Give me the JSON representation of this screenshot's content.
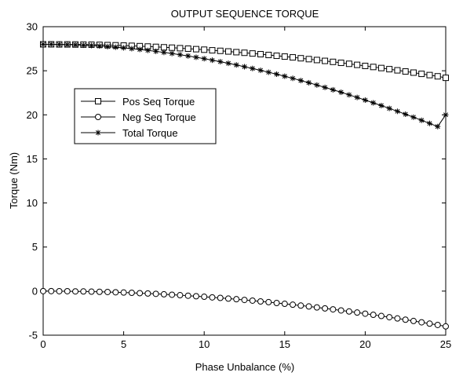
{
  "chart_data": {
    "type": "line",
    "title": "OUTPUT SEQUENCE TORQUE",
    "xlabel": "Phase Unbalance (%)",
    "ylabel": "Torque (Nm)",
    "xlim": [
      0,
      25
    ],
    "ylim": [
      -5,
      30
    ],
    "xticks": [
      0,
      5,
      10,
      15,
      20,
      25
    ],
    "yticks": [
      -5,
      0,
      5,
      10,
      15,
      20,
      25,
      30
    ],
    "grid": false,
    "legend_position": "upper-left",
    "series": [
      {
        "name": "Pos Seq Torque",
        "marker": "square",
        "x": [
          0,
          0.5,
          1,
          1.5,
          2,
          2.5,
          3,
          3.5,
          4,
          4.5,
          5,
          5.5,
          6,
          6.5,
          7,
          7.5,
          8,
          8.5,
          9,
          9.5,
          10,
          10.5,
          11,
          11.5,
          12,
          12.5,
          13,
          13.5,
          14,
          14.5,
          15,
          15.5,
          16,
          16.5,
          17,
          17.5,
          18,
          18.5,
          19,
          19.5,
          20,
          20.5,
          21,
          21.5,
          22,
          22.5,
          23,
          23.5,
          24,
          24.5,
          25
        ],
        "values": [
          28.0,
          28.0,
          27.99,
          27.99,
          27.98,
          27.97,
          27.96,
          27.94,
          27.91,
          27.89,
          27.86,
          27.83,
          27.79,
          27.75,
          27.71,
          27.66,
          27.62,
          27.56,
          27.51,
          27.45,
          27.39,
          27.32,
          27.26,
          27.19,
          27.11,
          27.04,
          26.96,
          26.88,
          26.79,
          26.7,
          26.61,
          26.52,
          26.42,
          26.32,
          26.22,
          26.12,
          26.01,
          25.9,
          25.79,
          25.67,
          25.55,
          25.43,
          25.31,
          25.18,
          25.05,
          24.92,
          24.79,
          24.65,
          24.51,
          24.37,
          24.2
        ]
      },
      {
        "name": "Neg Seq Torque",
        "marker": "circle",
        "x": [
          0,
          0.5,
          1,
          1.5,
          2,
          2.5,
          3,
          3.5,
          4,
          4.5,
          5,
          5.5,
          6,
          6.5,
          7,
          7.5,
          8,
          8.5,
          9,
          9.5,
          10,
          10.5,
          11,
          11.5,
          12,
          12.5,
          13,
          13.5,
          14,
          14.5,
          15,
          15.5,
          16,
          16.5,
          17,
          17.5,
          18,
          18.5,
          19,
          19.5,
          20,
          20.5,
          21,
          21.5,
          22,
          22.5,
          23,
          23.5,
          24,
          24.5,
          25
        ],
        "values": [
          0.0,
          0.0,
          -0.01,
          -0.01,
          -0.03,
          -0.04,
          -0.06,
          -0.08,
          -0.1,
          -0.13,
          -0.16,
          -0.19,
          -0.23,
          -0.27,
          -0.31,
          -0.36,
          -0.41,
          -0.46,
          -0.52,
          -0.58,
          -0.64,
          -0.71,
          -0.77,
          -0.85,
          -0.92,
          -1.0,
          -1.08,
          -1.17,
          -1.25,
          -1.35,
          -1.44,
          -1.54,
          -1.64,
          -1.74,
          -1.85,
          -1.96,
          -2.07,
          -2.19,
          -2.31,
          -2.43,
          -2.56,
          -2.69,
          -2.82,
          -2.96,
          -3.1,
          -3.24,
          -3.39,
          -3.54,
          -3.69,
          -3.84,
          -4.0
        ]
      },
      {
        "name": "Total Torque",
        "marker": "asterisk",
        "x": [
          0,
          0.5,
          1,
          1.5,
          2,
          2.5,
          3,
          3.5,
          4,
          4.5,
          5,
          5.5,
          6,
          6.5,
          7,
          7.5,
          8,
          8.5,
          9,
          9.5,
          10,
          10.5,
          11,
          11.5,
          12,
          12.5,
          13,
          13.5,
          14,
          14.5,
          15,
          15.5,
          16,
          16.5,
          17,
          17.5,
          18,
          18.5,
          19,
          19.5,
          20,
          20.5,
          21,
          21.5,
          22,
          22.5,
          23,
          23.5,
          24,
          24.5,
          25
        ],
        "values": [
          28.0,
          28.0,
          27.98,
          27.96,
          27.94,
          27.9,
          27.86,
          27.81,
          27.74,
          27.67,
          27.6,
          27.51,
          27.42,
          27.31,
          27.2,
          27.08,
          26.96,
          26.82,
          26.68,
          26.53,
          26.37,
          26.2,
          26.03,
          25.85,
          25.66,
          25.46,
          25.26,
          25.05,
          24.83,
          24.61,
          24.38,
          24.14,
          23.89,
          23.64,
          23.38,
          23.11,
          22.84,
          22.56,
          22.27,
          21.97,
          21.67,
          21.36,
          21.05,
          20.73,
          20.4,
          20.07,
          19.73,
          19.38,
          19.03,
          18.67,
          20.0
        ]
      }
    ]
  }
}
